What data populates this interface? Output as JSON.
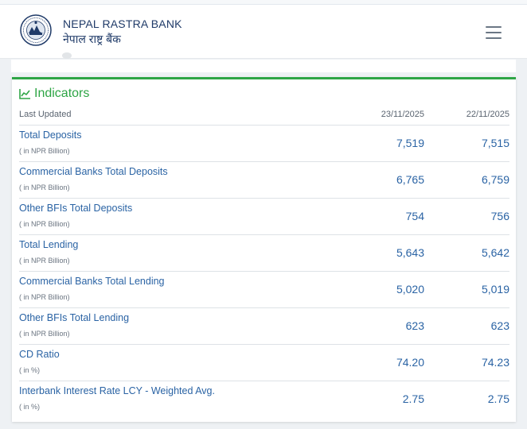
{
  "header": {
    "brand_en": "NEPAL RASTRA BANK",
    "brand_np": "नेपाल राष्ट्र बैंक",
    "logo_icon": "nrb-seal-icon",
    "menu_icon": "hamburger-icon"
  },
  "indicators": {
    "title": "Indicators",
    "title_icon": "line-chart-icon",
    "last_updated_label": "Last Updated",
    "dates": [
      "23/11/2025",
      "22/11/2025"
    ],
    "rows": [
      {
        "name": "Total Deposits",
        "unit": "( in NPR Billion)",
        "values": [
          "7,519",
          "7,515"
        ]
      },
      {
        "name": "Commercial Banks Total Deposits",
        "unit": "( in NPR Billion)",
        "values": [
          "6,765",
          "6,759"
        ]
      },
      {
        "name": "Other BFIs Total Deposits",
        "unit": "( in NPR Billion)",
        "values": [
          "754",
          "756"
        ]
      },
      {
        "name": "Total Lending",
        "unit": "( in NPR Billion)",
        "values": [
          "5,643",
          "5,642"
        ]
      },
      {
        "name": "Commercial Banks Total Lending",
        "unit": "( in NPR Billion)",
        "values": [
          "5,020",
          "5,019"
        ]
      },
      {
        "name": "Other BFIs Total Lending",
        "unit": "( in NPR Billion)",
        "values": [
          "623",
          "623"
        ]
      },
      {
        "name": "CD Ratio",
        "unit": "( in %)",
        "values": [
          "74.20",
          "74.23"
        ]
      },
      {
        "name": "Interbank Interest Rate LCY - Weighted Avg.",
        "unit": "( in %)",
        "values": [
          "2.75",
          "2.75"
        ]
      }
    ]
  },
  "colors": {
    "accent_green": "#2ea545",
    "link_blue": "#2a63a4",
    "brand_navy": "#1f3a68"
  }
}
